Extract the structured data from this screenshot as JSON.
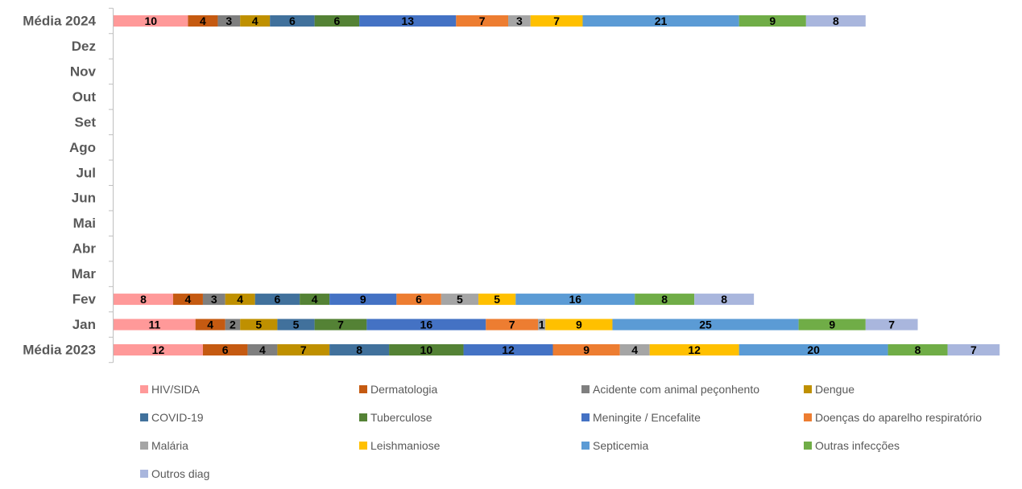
{
  "chart_data": {
    "type": "bar",
    "orientation": "horizontal",
    "stacked": true,
    "categories": [
      "Média 2024",
      "Dez",
      "Nov",
      "Out",
      "Set",
      "Ago",
      "Jul",
      "Jun",
      "Mai",
      "Abr",
      "Mar",
      "Fev",
      "Jan",
      "Média 2023"
    ],
    "series": [
      {
        "name": "HIV/SIDA",
        "color": "#ff9999",
        "values": [
          10,
          null,
          null,
          null,
          null,
          null,
          null,
          null,
          null,
          null,
          null,
          8,
          11,
          12
        ]
      },
      {
        "name": "Dermatologia",
        "color": "#c55a11",
        "values": [
          4,
          null,
          null,
          null,
          null,
          null,
          null,
          null,
          null,
          null,
          null,
          4,
          4,
          6
        ]
      },
      {
        "name": "Acidente com animal peçonhento",
        "color": "#7f7f7f",
        "values": [
          3,
          null,
          null,
          null,
          null,
          null,
          null,
          null,
          null,
          null,
          null,
          3,
          2,
          4
        ]
      },
      {
        "name": "Dengue",
        "color": "#bf9000",
        "values": [
          4,
          null,
          null,
          null,
          null,
          null,
          null,
          null,
          null,
          null,
          null,
          4,
          5,
          7
        ]
      },
      {
        "name": "COVID-19",
        "color": "#41719c",
        "values": [
          6,
          null,
          null,
          null,
          null,
          null,
          null,
          null,
          null,
          null,
          null,
          6,
          5,
          8
        ]
      },
      {
        "name": "Tuberculose",
        "color": "#548235",
        "values": [
          6,
          null,
          null,
          null,
          null,
          null,
          null,
          null,
          null,
          null,
          null,
          4,
          7,
          10
        ]
      },
      {
        "name": "Meningite / Encefalite",
        "color": "#4472c4",
        "values": [
          13,
          null,
          null,
          null,
          null,
          null,
          null,
          null,
          null,
          null,
          null,
          9,
          16,
          12
        ]
      },
      {
        "name": "Doenças do aparelho respiratório",
        "color": "#ed7d31",
        "values": [
          7,
          null,
          null,
          null,
          null,
          null,
          null,
          null,
          null,
          null,
          null,
          6,
          7,
          9
        ]
      },
      {
        "name": "Malária",
        "color": "#a5a5a5",
        "values": [
          3,
          null,
          null,
          null,
          null,
          null,
          null,
          null,
          null,
          null,
          null,
          5,
          1,
          4
        ]
      },
      {
        "name": "Leishmaniose",
        "color": "#ffc000",
        "values": [
          7,
          null,
          null,
          null,
          null,
          null,
          null,
          null,
          null,
          null,
          null,
          5,
          9,
          12
        ]
      },
      {
        "name": "Septicemia",
        "color": "#5b9bd5",
        "values": [
          21,
          null,
          null,
          null,
          null,
          null,
          null,
          null,
          null,
          null,
          null,
          16,
          25,
          20
        ]
      },
      {
        "name": "Outras infecções",
        "color": "#70ad47",
        "values": [
          9,
          null,
          null,
          null,
          null,
          null,
          null,
          null,
          null,
          null,
          null,
          8,
          9,
          8
        ]
      },
      {
        "name": "Outros diag",
        "color": "#a9b6dd",
        "values": [
          8,
          null,
          null,
          null,
          null,
          null,
          null,
          null,
          null,
          null,
          null,
          8,
          7,
          7
        ]
      }
    ],
    "title": "",
    "xlabel": "",
    "ylabel": "",
    "xlim": [
      0,
      118
    ],
    "grid": false,
    "legend_position": "bottom",
    "data_labels": true
  }
}
